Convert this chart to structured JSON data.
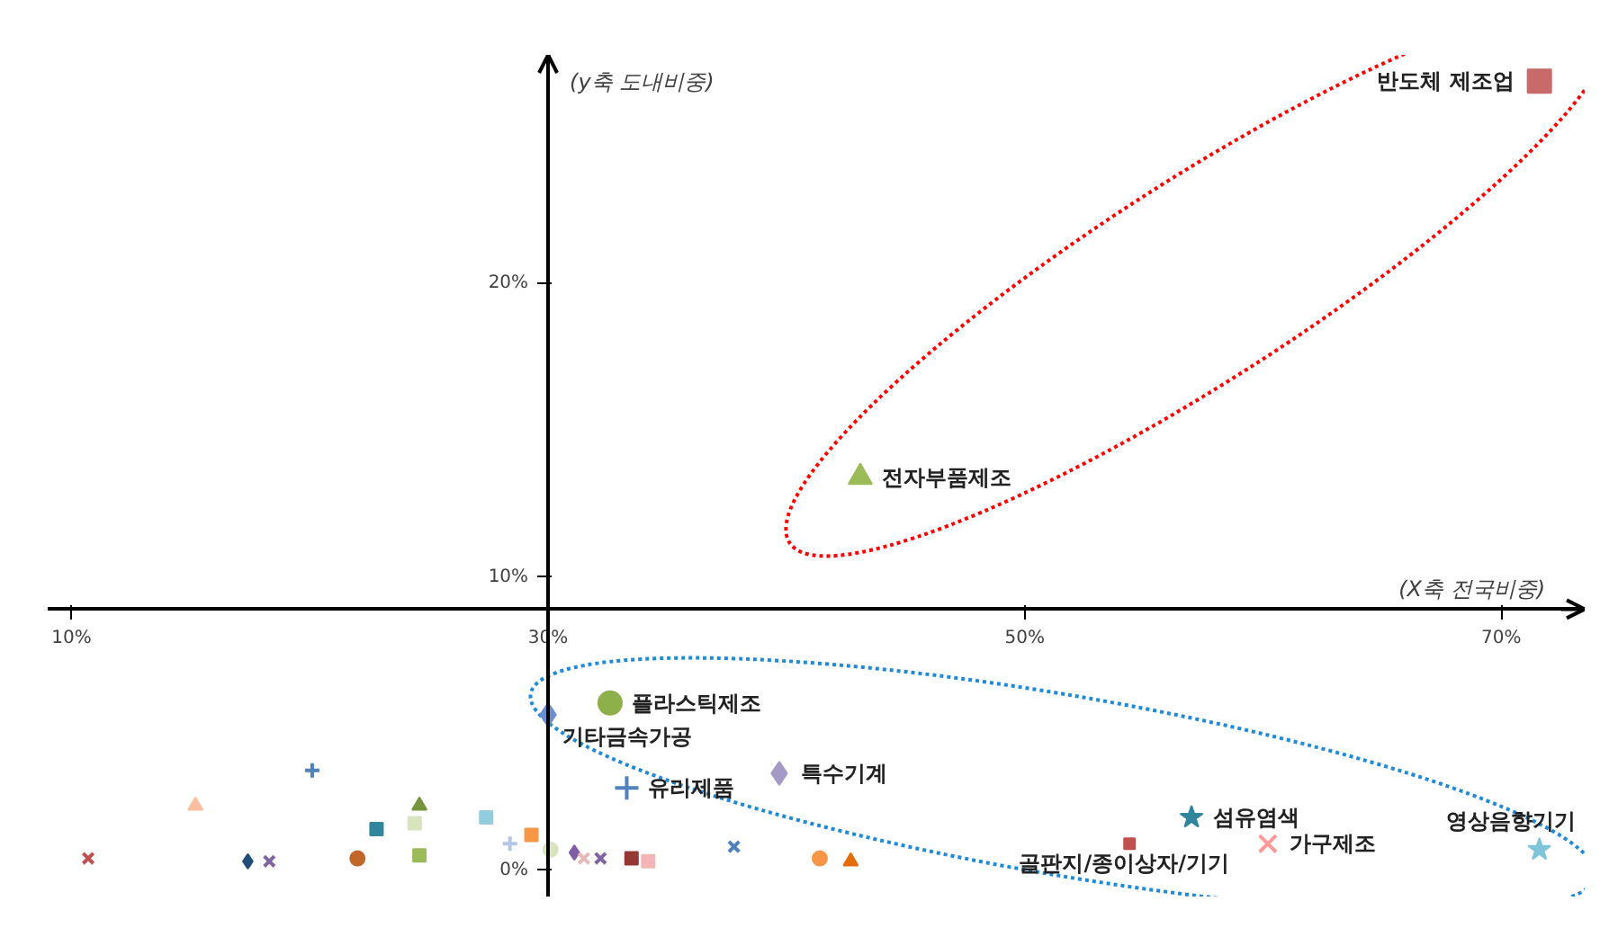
{
  "chart_data": {
    "type": "scatter",
    "xlabel": "(X축 전국비중)",
    "ylabel": "(y축 도내비중)",
    "xlim": [
      9,
      73.5
    ],
    "ylim": [
      -0.9,
      27.8
    ],
    "xticks": [
      {
        "value": 10,
        "label": "10%"
      },
      {
        "value": 30,
        "label": "30%"
      },
      {
        "value": 50,
        "label": "50%"
      },
      {
        "value": 70,
        "label": "70%"
      }
    ],
    "yticks": [
      {
        "value": 0,
        "label": "0%"
      },
      {
        "value": 10,
        "label": "10%"
      },
      {
        "value": 20,
        "label": "20%"
      }
    ],
    "grid": false,
    "legend": false,
    "series": [
      {
        "name": "반도체 제조업",
        "color": "#c96a6a",
        "marker": "square",
        "x": [
          71.6
        ],
        "values": [
          26.9
        ]
      },
      {
        "name": "전자부품제조",
        "color": "#9bbb59",
        "marker": "triangle",
        "x": [
          43.1
        ],
        "values": [
          13.4
        ]
      },
      {
        "name": "플라스틱제조",
        "color": "#8db04a",
        "marker": "circle",
        "x": [
          32.6
        ],
        "values": [
          5.7
        ]
      },
      {
        "name": "기타금속가공",
        "color": "#6a8fd0",
        "marker": "diamond",
        "x": [
          30.0
        ],
        "values": [
          5.3
        ]
      },
      {
        "name": "특수기계",
        "color": "#a59ac5",
        "marker": "diamond",
        "x": [
          39.7
        ],
        "values": [
          3.3
        ]
      },
      {
        "name": "유리제품",
        "color": "#4f81bd",
        "marker": "cross",
        "x": [
          33.3
        ],
        "values": [
          2.8
        ]
      },
      {
        "name": "섬유염색",
        "color": "#31859c",
        "marker": "star",
        "x": [
          57.0
        ],
        "values": [
          1.8
        ]
      },
      {
        "name": "골판지/종이상자/기기",
        "color": "#c0504d",
        "marker": "square",
        "x": [
          54.4
        ],
        "values": [
          0.9
        ]
      },
      {
        "name": "가구제조",
        "color": "#ff9999",
        "marker": "x",
        "x": [
          60.2
        ],
        "values": [
          0.9
        ]
      },
      {
        "name": "영상음향기기",
        "color": "#7fc4d8",
        "marker": "star",
        "x": [
          71.6
        ],
        "values": [
          0.7
        ]
      },
      {
        "color": "#c0504d",
        "marker": "x",
        "x": [
          10.7
        ],
        "values": [
          0.4
        ]
      },
      {
        "color": "#fbbfa0",
        "marker": "triangle",
        "x": [
          15.2
        ],
        "values": [
          2.2
        ]
      },
      {
        "color": "#4f81bd",
        "marker": "cross",
        "x": [
          20.1
        ],
        "values": [
          3.4
        ]
      },
      {
        "color": "#1f4e79",
        "marker": "diamond",
        "x": [
          17.4
        ],
        "values": [
          0.3
        ]
      },
      {
        "color": "#8064a2",
        "marker": "x",
        "x": [
          18.3
        ],
        "values": [
          0.3
        ]
      },
      {
        "color": "#31859c",
        "marker": "square",
        "x": [
          22.8
        ],
        "values": [
          1.4
        ]
      },
      {
        "color": "#c0672a",
        "marker": "circle",
        "x": [
          22.0
        ],
        "values": [
          0.4
        ]
      },
      {
        "color": "#77933c",
        "marker": "triangle",
        "x": [
          24.6
        ],
        "values": [
          2.2
        ]
      },
      {
        "color": "#d7e4bd",
        "marker": "square",
        "x": [
          24.4
        ],
        "values": [
          1.6
        ]
      },
      {
        "color": "#9bbb59",
        "marker": "square",
        "x": [
          24.6
        ],
        "values": [
          0.5
        ]
      },
      {
        "color": "#93cddd",
        "marker": "square",
        "x": [
          27.4
        ],
        "values": [
          1.8
        ]
      },
      {
        "color": "#b3c6e7",
        "marker": "cross",
        "x": [
          28.4
        ],
        "values": [
          0.9
        ]
      },
      {
        "color": "#f79646",
        "marker": "square",
        "x": [
          29.3
        ],
        "values": [
          1.2
        ]
      },
      {
        "color": "#d7e4bd",
        "marker": "circle",
        "x": [
          30.1
        ],
        "values": [
          0.7
        ]
      },
      {
        "color": "#7f5fa5",
        "marker": "diamond",
        "x": [
          31.1
        ],
        "values": [
          0.6
        ]
      },
      {
        "color": "#e6b9b8",
        "marker": "x",
        "x": [
          31.5
        ],
        "values": [
          0.4
        ]
      },
      {
        "color": "#8064a2",
        "marker": "x",
        "x": [
          32.2
        ],
        "values": [
          0.4
        ]
      },
      {
        "color": "#953735",
        "marker": "square",
        "x": [
          33.5
        ],
        "values": [
          0.4
        ]
      },
      {
        "color": "#f2b6b6",
        "marker": "square",
        "x": [
          34.2
        ],
        "values": [
          0.3
        ]
      },
      {
        "color": "#4f81bd",
        "marker": "x",
        "x": [
          37.8
        ],
        "values": [
          0.8
        ]
      },
      {
        "color": "#f79646",
        "marker": "circle",
        "x": [
          41.4
        ],
        "values": [
          0.4
        ]
      },
      {
        "color": "#e46c0a",
        "marker": "triangle",
        "x": [
          42.7
        ],
        "values": [
          0.3
        ]
      }
    ]
  }
}
